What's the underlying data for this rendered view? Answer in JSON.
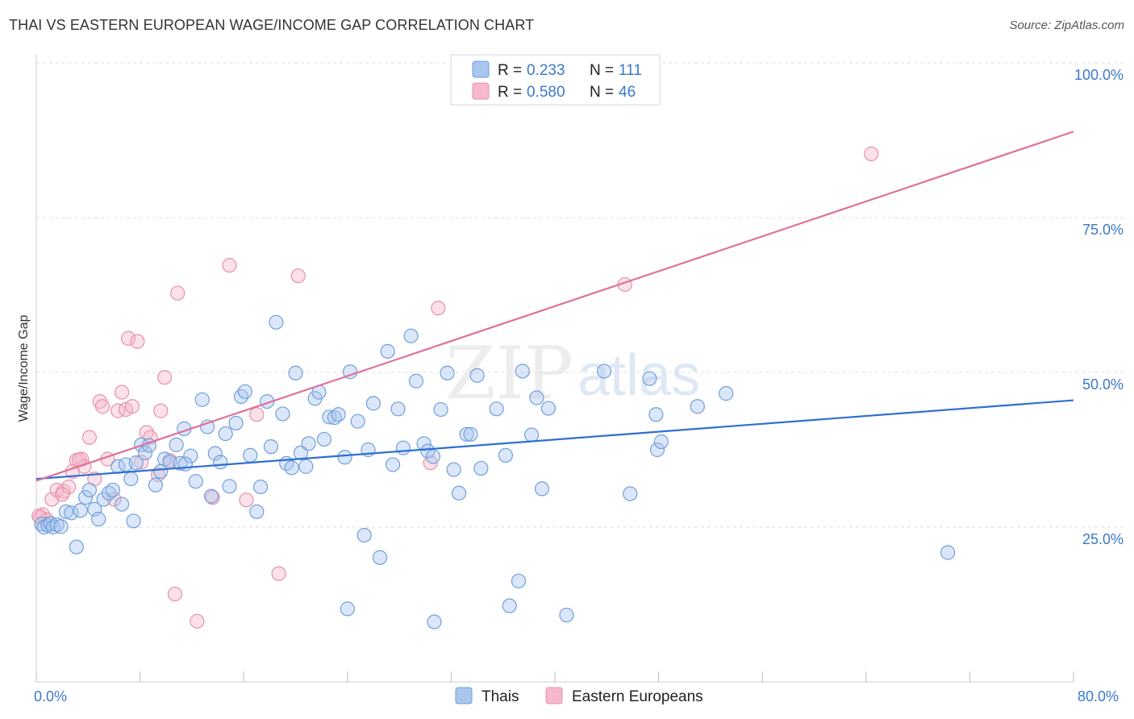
{
  "header": {
    "title": "THAI VS EASTERN EUROPEAN WAGE/INCOME GAP CORRELATION CHART",
    "source": "Source: ZipAtlas.com"
  },
  "watermark": {
    "zip": "ZIP",
    "atlas": "atlas"
  },
  "colors": {
    "thai_fill": "#a9c6ee",
    "thai_stroke": "#6f9fdc",
    "thai_line": "#2f6fd0",
    "ee_fill": "#f6b8cb",
    "ee_stroke": "#e890ab",
    "ee_line": "#e0709a",
    "tick_label": "#3b78c9"
  },
  "legend": {
    "rows": [
      {
        "r_label": "R =",
        "r_value": "0.233",
        "n_label": "N =",
        "n_value": "111"
      },
      {
        "r_label": "R =",
        "r_value": "0.580",
        "n_label": "N =",
        "n_value": "46"
      }
    ]
  },
  "bottom_legend": {
    "thai": "Thais",
    "ee": "Eastern Europeans"
  },
  "chart_data": {
    "type": "scatter",
    "title": "THAI VS EASTERN EUROPEAN WAGE/INCOME GAP CORRELATION CHART",
    "xlabel": "",
    "ylabel": "Wage/Income Gap",
    "xlim": [
      0,
      80
    ],
    "ylim": [
      0,
      105
    ],
    "x_tick_labels": [
      "0.0%",
      "80.0%"
    ],
    "y_ticks": [
      25,
      50,
      75,
      100
    ],
    "y_tick_labels": [
      "25.0%",
      "50.0%",
      "75.0%",
      "100.0%"
    ],
    "grid": "horizontal dashed",
    "legend_position": "top-center",
    "series": [
      {
        "name": "Thais",
        "r": 0.233,
        "n": 111,
        "trend": {
          "x": [
            0,
            80
          ],
          "y": [
            32.8,
            45.5
          ]
        },
        "points": [
          [
            0.4,
            25.5
          ],
          [
            0.6,
            25
          ],
          [
            0.9,
            25.3
          ],
          [
            1.1,
            25.6
          ],
          [
            1.3,
            25
          ],
          [
            1.6,
            25.4
          ],
          [
            1.9,
            25.1
          ],
          [
            2.3,
            27.5
          ],
          [
            2.7,
            27.3
          ],
          [
            3.1,
            21.8
          ],
          [
            3.4,
            27.7
          ],
          [
            3.8,
            29.8
          ],
          [
            4.1,
            31
          ],
          [
            4.5,
            27.9
          ],
          [
            4.8,
            26.3
          ],
          [
            5.2,
            29.5
          ],
          [
            5.6,
            30.5
          ],
          [
            5.9,
            31
          ],
          [
            6.3,
            34.8
          ],
          [
            6.6,
            28.7
          ],
          [
            6.9,
            35.1
          ],
          [
            7.3,
            32.8
          ],
          [
            7.7,
            35.4
          ],
          [
            8.1,
            38.3
          ],
          [
            8.4,
            37
          ],
          [
            8.7,
            38.2
          ],
          [
            9.2,
            31.8
          ],
          [
            9.6,
            34
          ],
          [
            9.9,
            36
          ],
          [
            10.3,
            35.5
          ],
          [
            10.8,
            38.3
          ],
          [
            11.1,
            35.3
          ],
          [
            11.4,
            40.9
          ],
          [
            11.9,
            36.5
          ],
          [
            12.3,
            32.4
          ],
          [
            12.8,
            45.6
          ],
          [
            13.2,
            41.2
          ],
          [
            13.5,
            30
          ],
          [
            13.8,
            36.9
          ],
          [
            14.2,
            35.5
          ],
          [
            14.6,
            40.1
          ],
          [
            14.9,
            31.6
          ],
          [
            15.4,
            41.8
          ],
          [
            15.8,
            46.1
          ],
          [
            16.1,
            46.9
          ],
          [
            16.5,
            36.6
          ],
          [
            17,
            27.5
          ],
          [
            17.3,
            31.5
          ],
          [
            17.8,
            45.3
          ],
          [
            18.1,
            38
          ],
          [
            18.5,
            58.1
          ],
          [
            19.0,
            43.3
          ],
          [
            19.3,
            35.3
          ],
          [
            19.7,
            34.6
          ],
          [
            20.0,
            49.9
          ],
          [
            20.4,
            37
          ],
          [
            20.8,
            34.8
          ],
          [
            21.0,
            38.5
          ],
          [
            21.5,
            45.8
          ],
          [
            21.8,
            46.8
          ],
          [
            22.2,
            39.2
          ],
          [
            22.6,
            42.8
          ],
          [
            23.0,
            42.7
          ],
          [
            23.3,
            43.2
          ],
          [
            23.8,
            36.3
          ],
          [
            24.2,
            50.1
          ],
          [
            24.8,
            42.1
          ],
          [
            25.3,
            23.7
          ],
          [
            25.6,
            37.5
          ],
          [
            26.0,
            45
          ],
          [
            26.5,
            20.1
          ],
          [
            27.1,
            53.4
          ],
          [
            27.5,
            35.1
          ],
          [
            27.9,
            44.1
          ],
          [
            28.3,
            37.8
          ],
          [
            28.9,
            55.9
          ],
          [
            29.3,
            48.6
          ],
          [
            29.9,
            38.5
          ],
          [
            30.2,
            37.3
          ],
          [
            30.6,
            36.4
          ],
          [
            31.2,
            44
          ],
          [
            31.7,
            49.9
          ],
          [
            32.2,
            34.3
          ],
          [
            32.6,
            30.5
          ],
          [
            33.2,
            40
          ],
          [
            33.5,
            40
          ],
          [
            34.0,
            49.5
          ],
          [
            34.3,
            34.5
          ],
          [
            35.5,
            44.1
          ],
          [
            36.2,
            36.6
          ],
          [
            37.2,
            16.3
          ],
          [
            37.5,
            50.2
          ],
          [
            38.2,
            39.9
          ],
          [
            38.6,
            45.9
          ],
          [
            39.0,
            31.2
          ],
          [
            39.5,
            44.2
          ],
          [
            40.9,
            10.8
          ],
          [
            43.8,
            50.2
          ],
          [
            45.8,
            30.4
          ],
          [
            47.3,
            49
          ],
          [
            47.8,
            43.2
          ],
          [
            47.9,
            37.5
          ],
          [
            48.2,
            38.8
          ],
          [
            51.0,
            44.5
          ],
          [
            53.2,
            46.6
          ],
          [
            70.3,
            20.9
          ],
          [
            24.0,
            11.8
          ],
          [
            30.7,
            9.7
          ],
          [
            36.5,
            12.3
          ],
          [
            11.5,
            35.2
          ],
          [
            7.5,
            26.0
          ]
        ]
      },
      {
        "name": "Eastern Europeans",
        "r": 0.58,
        "n": 46,
        "trend": {
          "x": [
            0,
            80
          ],
          "y": [
            32.5,
            88.9
          ]
        },
        "points": [
          [
            0.3,
            26.5
          ],
          [
            0.5,
            27
          ],
          [
            0.8,
            26.2
          ],
          [
            1.2,
            29.5
          ],
          [
            1.6,
            31
          ],
          [
            2.1,
            30.8
          ],
          [
            2.5,
            31.5
          ],
          [
            2.8,
            34
          ],
          [
            3.1,
            35.8
          ],
          [
            3.5,
            36
          ],
          [
            3.7,
            34.8
          ],
          [
            4.1,
            39.5
          ],
          [
            4.5,
            32.8
          ],
          [
            4.9,
            45.3
          ],
          [
            5.1,
            44.5
          ],
          [
            5.5,
            36
          ],
          [
            6.0,
            29.5
          ],
          [
            6.3,
            43.8
          ],
          [
            6.6,
            46.8
          ],
          [
            6.9,
            44
          ],
          [
            7.1,
            55.5
          ],
          [
            7.4,
            44.5
          ],
          [
            7.8,
            55
          ],
          [
            8.1,
            35.5
          ],
          [
            8.5,
            40.3
          ],
          [
            8.8,
            39.5
          ],
          [
            9.4,
            33.5
          ],
          [
            9.6,
            43.8
          ],
          [
            9.9,
            49.2
          ],
          [
            10.3,
            35.8
          ],
          [
            10.7,
            14.2
          ],
          [
            10.9,
            62.8
          ],
          [
            12.4,
            9.8
          ],
          [
            13.6,
            29.8
          ],
          [
            14.9,
            67.3
          ],
          [
            16.2,
            29.4
          ],
          [
            17,
            43.2
          ],
          [
            18.7,
            17.5
          ],
          [
            20.2,
            65.6
          ],
          [
            30.4,
            35.4
          ],
          [
            31.0,
            60.4
          ],
          [
            45.4,
            64.2
          ],
          [
            64.4,
            85.3
          ],
          [
            3.3,
            35.9
          ],
          [
            2.0,
            30.3
          ],
          [
            0.2,
            26.8
          ]
        ]
      }
    ]
  }
}
